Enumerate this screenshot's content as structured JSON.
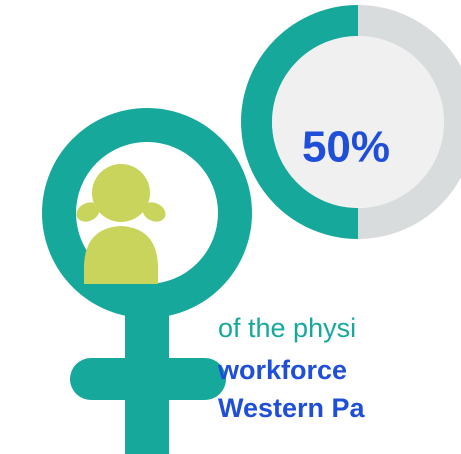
{
  "chart_data": {
    "type": "donut",
    "values": [
      50
    ],
    "value_labels": [
      "50%"
    ],
    "max": 100,
    "color": "#16a99b",
    "rest_color": "#d9dcdd",
    "label_color": "#1f4fd8",
    "caption": [
      "of the physi",
      "workforce",
      "Western Pa"
    ]
  }
}
